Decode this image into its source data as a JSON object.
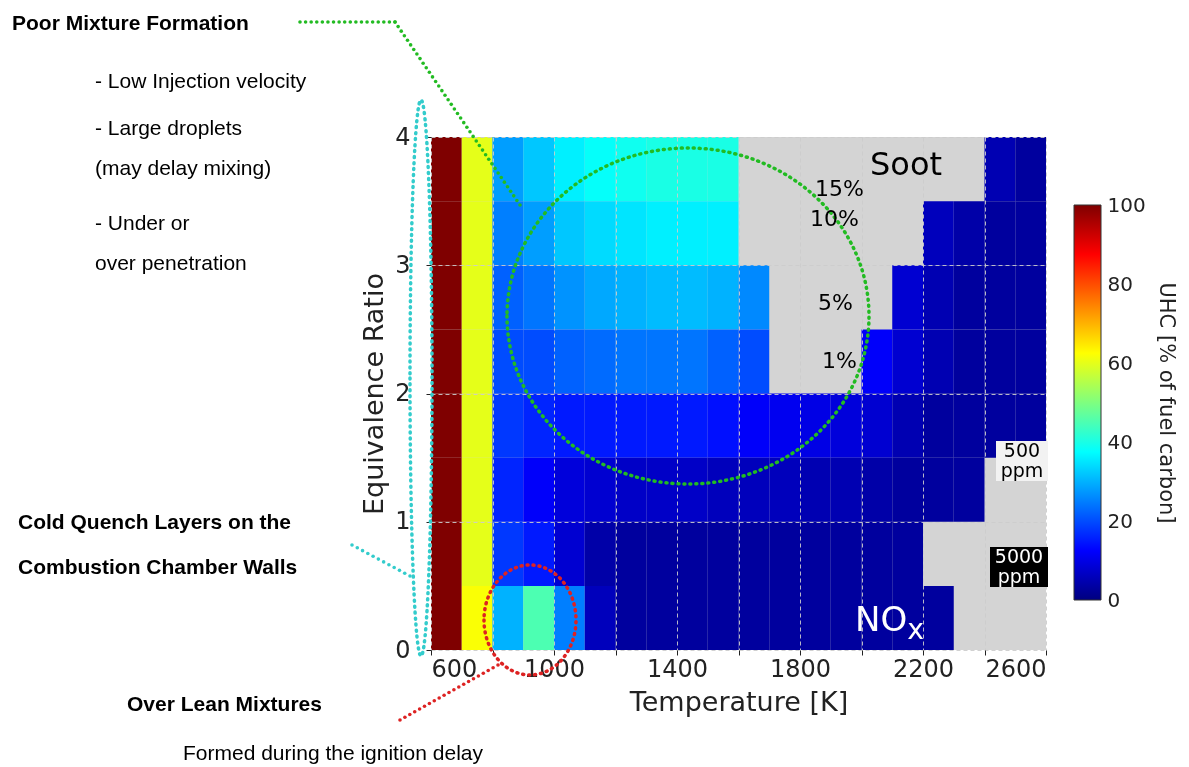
{
  "chart_data": {
    "type": "heatmap",
    "xlabel": "Temperature [K]",
    "ylabel": "Equivalence Ratio",
    "clabel": "UHC [% of fuel carbon]",
    "x": [
      650,
      750,
      850,
      950,
      1050,
      1150,
      1250,
      1350,
      1450,
      1550,
      1650,
      1750,
      1850,
      1950,
      2050,
      2150,
      2250,
      2350,
      2450,
      2550
    ],
    "y": [
      3.75,
      3.25,
      2.75,
      2.25,
      1.75,
      1.25,
      0.75,
      0.25
    ],
    "xlim": [
      600,
      2600
    ],
    "ylim": [
      0,
      4
    ],
    "xticks": [
      600,
      {
        "value": 800,
        "label": null
      },
      1000,
      {
        "value": 1200,
        "label": null
      },
      1400,
      {
        "value": 1600,
        "label": null
      },
      1800,
      {
        "value": 2000,
        "label": null
      },
      2200,
      {
        "value": 2400,
        "label": null
      },
      2600
    ],
    "yticks": [
      0,
      1,
      2,
      3,
      4
    ],
    "grid": true,
    "clim": [
      0,
      100
    ],
    "cticks": [
      0,
      20,
      40,
      60,
      80,
      100
    ],
    "cells": [
      [
        100,
        60,
        28,
        32,
        36,
        38,
        39,
        40,
        40,
        40,
        null,
        null,
        null,
        null,
        null,
        null,
        null,
        null,
        5,
        3
      ],
      [
        100,
        60,
        25,
        28,
        32,
        34,
        35,
        36,
        36,
        36,
        null,
        null,
        null,
        null,
        null,
        null,
        6,
        4,
        3,
        3
      ],
      [
        100,
        60,
        22,
        24,
        27,
        29,
        30,
        31,
        31,
        30,
        26,
        null,
        null,
        null,
        null,
        8,
        5,
        3,
        3,
        3
      ],
      [
        100,
        60,
        20,
        20,
        22,
        23,
        24,
        24,
        24,
        22,
        20,
        null,
        null,
        null,
        12,
        8,
        5,
        3,
        3,
        3
      ],
      [
        100,
        60,
        18,
        16,
        15,
        15,
        15,
        15,
        15,
        14,
        12,
        11,
        10,
        9,
        8,
        5,
        3,
        3,
        3,
        3
      ],
      [
        100,
        60,
        16,
        12,
        9,
        8,
        7,
        7,
        7,
        6,
        6,
        6,
        5,
        5,
        4,
        3,
        3,
        3,
        null,
        null
      ],
      [
        100,
        60,
        18,
        15,
        8,
        4,
        3,
        3,
        3,
        3,
        3,
        3,
        3,
        3,
        3,
        3,
        null,
        null,
        null,
        null
      ],
      [
        100,
        62,
        30,
        45,
        25,
        6,
        3,
        3,
        3,
        3,
        3,
        3,
        3,
        3,
        3,
        3,
        3,
        null,
        null,
        null
      ]
    ],
    "annotations": [
      "Soot",
      "15%",
      "10%",
      "5%",
      "1%",
      "500 ppm",
      "5000 ppm",
      "NO$_{x}$",
      "Poor Mixture Formation",
      "-   Low Injection velocity",
      "-   Large droplets",
      "(may delay mixing)",
      "-   Under or",
      "over penetration",
      "Cold Quench Layers on the",
      "Combustion Chamber Walls",
      "Over Lean Mixtures",
      "Formed during the ignition delay"
    ]
  }
}
